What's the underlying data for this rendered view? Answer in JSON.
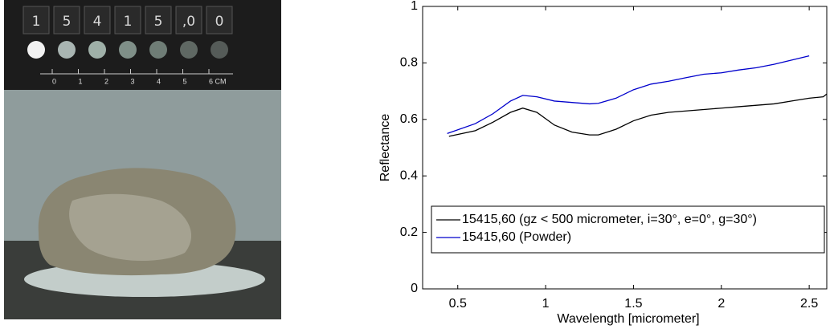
{
  "photo": {
    "sample_label": [
      "1",
      "5",
      "4",
      "1",
      "5",
      ",0",
      "0"
    ],
    "ruler": [
      "0",
      "1",
      "2",
      "3",
      "4",
      "5",
      "6 CM"
    ]
  },
  "chart_data": {
    "type": "line",
    "xlabel": "Wavelength [micrometer]",
    "ylabel": "Reflectance",
    "xlim": [
      0.3,
      2.6
    ],
    "ylim": [
      0,
      1
    ],
    "xticks": [
      0.5,
      1,
      1.5,
      2,
      2.5
    ],
    "yticks": [
      0,
      0.2,
      0.4,
      0.6,
      0.8,
      1
    ],
    "grid": false,
    "legend": "lower-left",
    "series": [
      {
        "name": "15415,60 (gz < 500 micrometer, i=30°, e=0°, g=30°)",
        "color": "#000000",
        "x": [
          0.45,
          0.6,
          0.7,
          0.8,
          0.87,
          0.95,
          1.05,
          1.15,
          1.25,
          1.3,
          1.4,
          1.5,
          1.6,
          1.7,
          1.8,
          1.9,
          2.0,
          2.1,
          2.2,
          2.3,
          2.4,
          2.5,
          2.58,
          2.6
        ],
        "values": [
          0.54,
          0.56,
          0.59,
          0.625,
          0.64,
          0.625,
          0.58,
          0.555,
          0.545,
          0.545,
          0.565,
          0.595,
          0.615,
          0.625,
          0.63,
          0.635,
          0.64,
          0.645,
          0.65,
          0.655,
          0.665,
          0.675,
          0.68,
          0.69
        ]
      },
      {
        "name": "15415,60 (Powder)",
        "color": "#0000cc",
        "x": [
          0.44,
          0.6,
          0.7,
          0.8,
          0.87,
          0.95,
          1.05,
          1.15,
          1.25,
          1.3,
          1.4,
          1.5,
          1.6,
          1.7,
          1.8,
          1.9,
          2.0,
          2.1,
          2.2,
          2.3,
          2.4,
          2.5
        ],
        "values": [
          0.55,
          0.585,
          0.62,
          0.665,
          0.685,
          0.68,
          0.665,
          0.66,
          0.655,
          0.657,
          0.675,
          0.705,
          0.725,
          0.735,
          0.748,
          0.76,
          0.765,
          0.775,
          0.783,
          0.795,
          0.81,
          0.825
        ]
      }
    ]
  }
}
